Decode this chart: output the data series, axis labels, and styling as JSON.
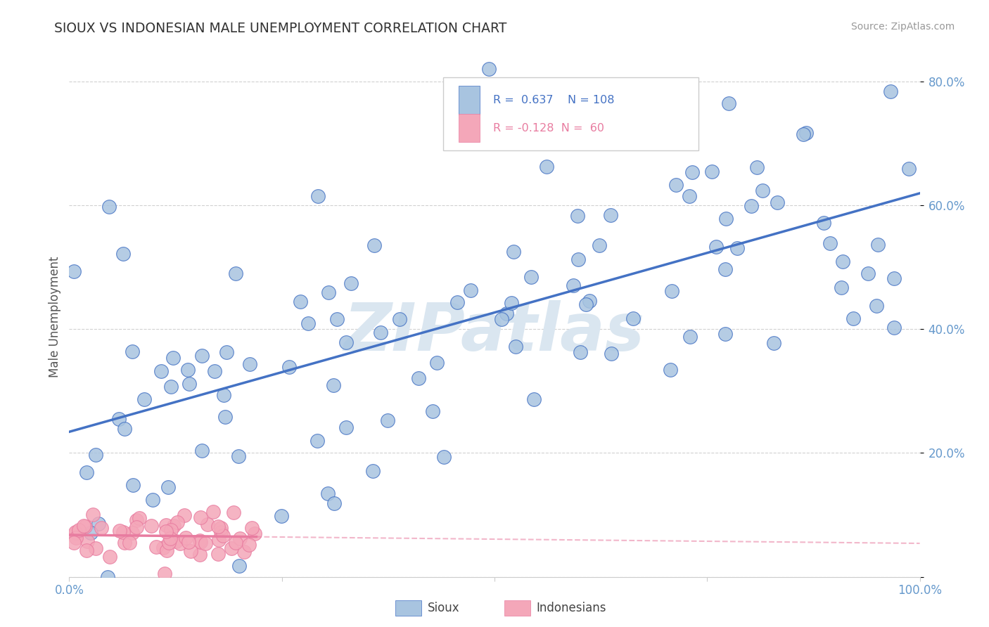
{
  "title": "SIOUX VS INDONESIAN MALE UNEMPLOYMENT CORRELATION CHART",
  "source": "Source: ZipAtlas.com",
  "ylabel": "Male Unemployment",
  "sioux_R": 0.637,
  "sioux_N": 108,
  "indonesian_R": -0.128,
  "indonesian_N": 60,
  "sioux_color": "#a8c4e0",
  "sioux_line_color": "#4472c4",
  "indonesian_color": "#f4a7b9",
  "indonesian_line_color": "#e87ca0",
  "watermark_color": "#dae6f0",
  "background_color": "#ffffff",
  "grid_color": "#cccccc",
  "tick_color": "#6699cc",
  "title_color": "#333333",
  "source_color": "#999999"
}
